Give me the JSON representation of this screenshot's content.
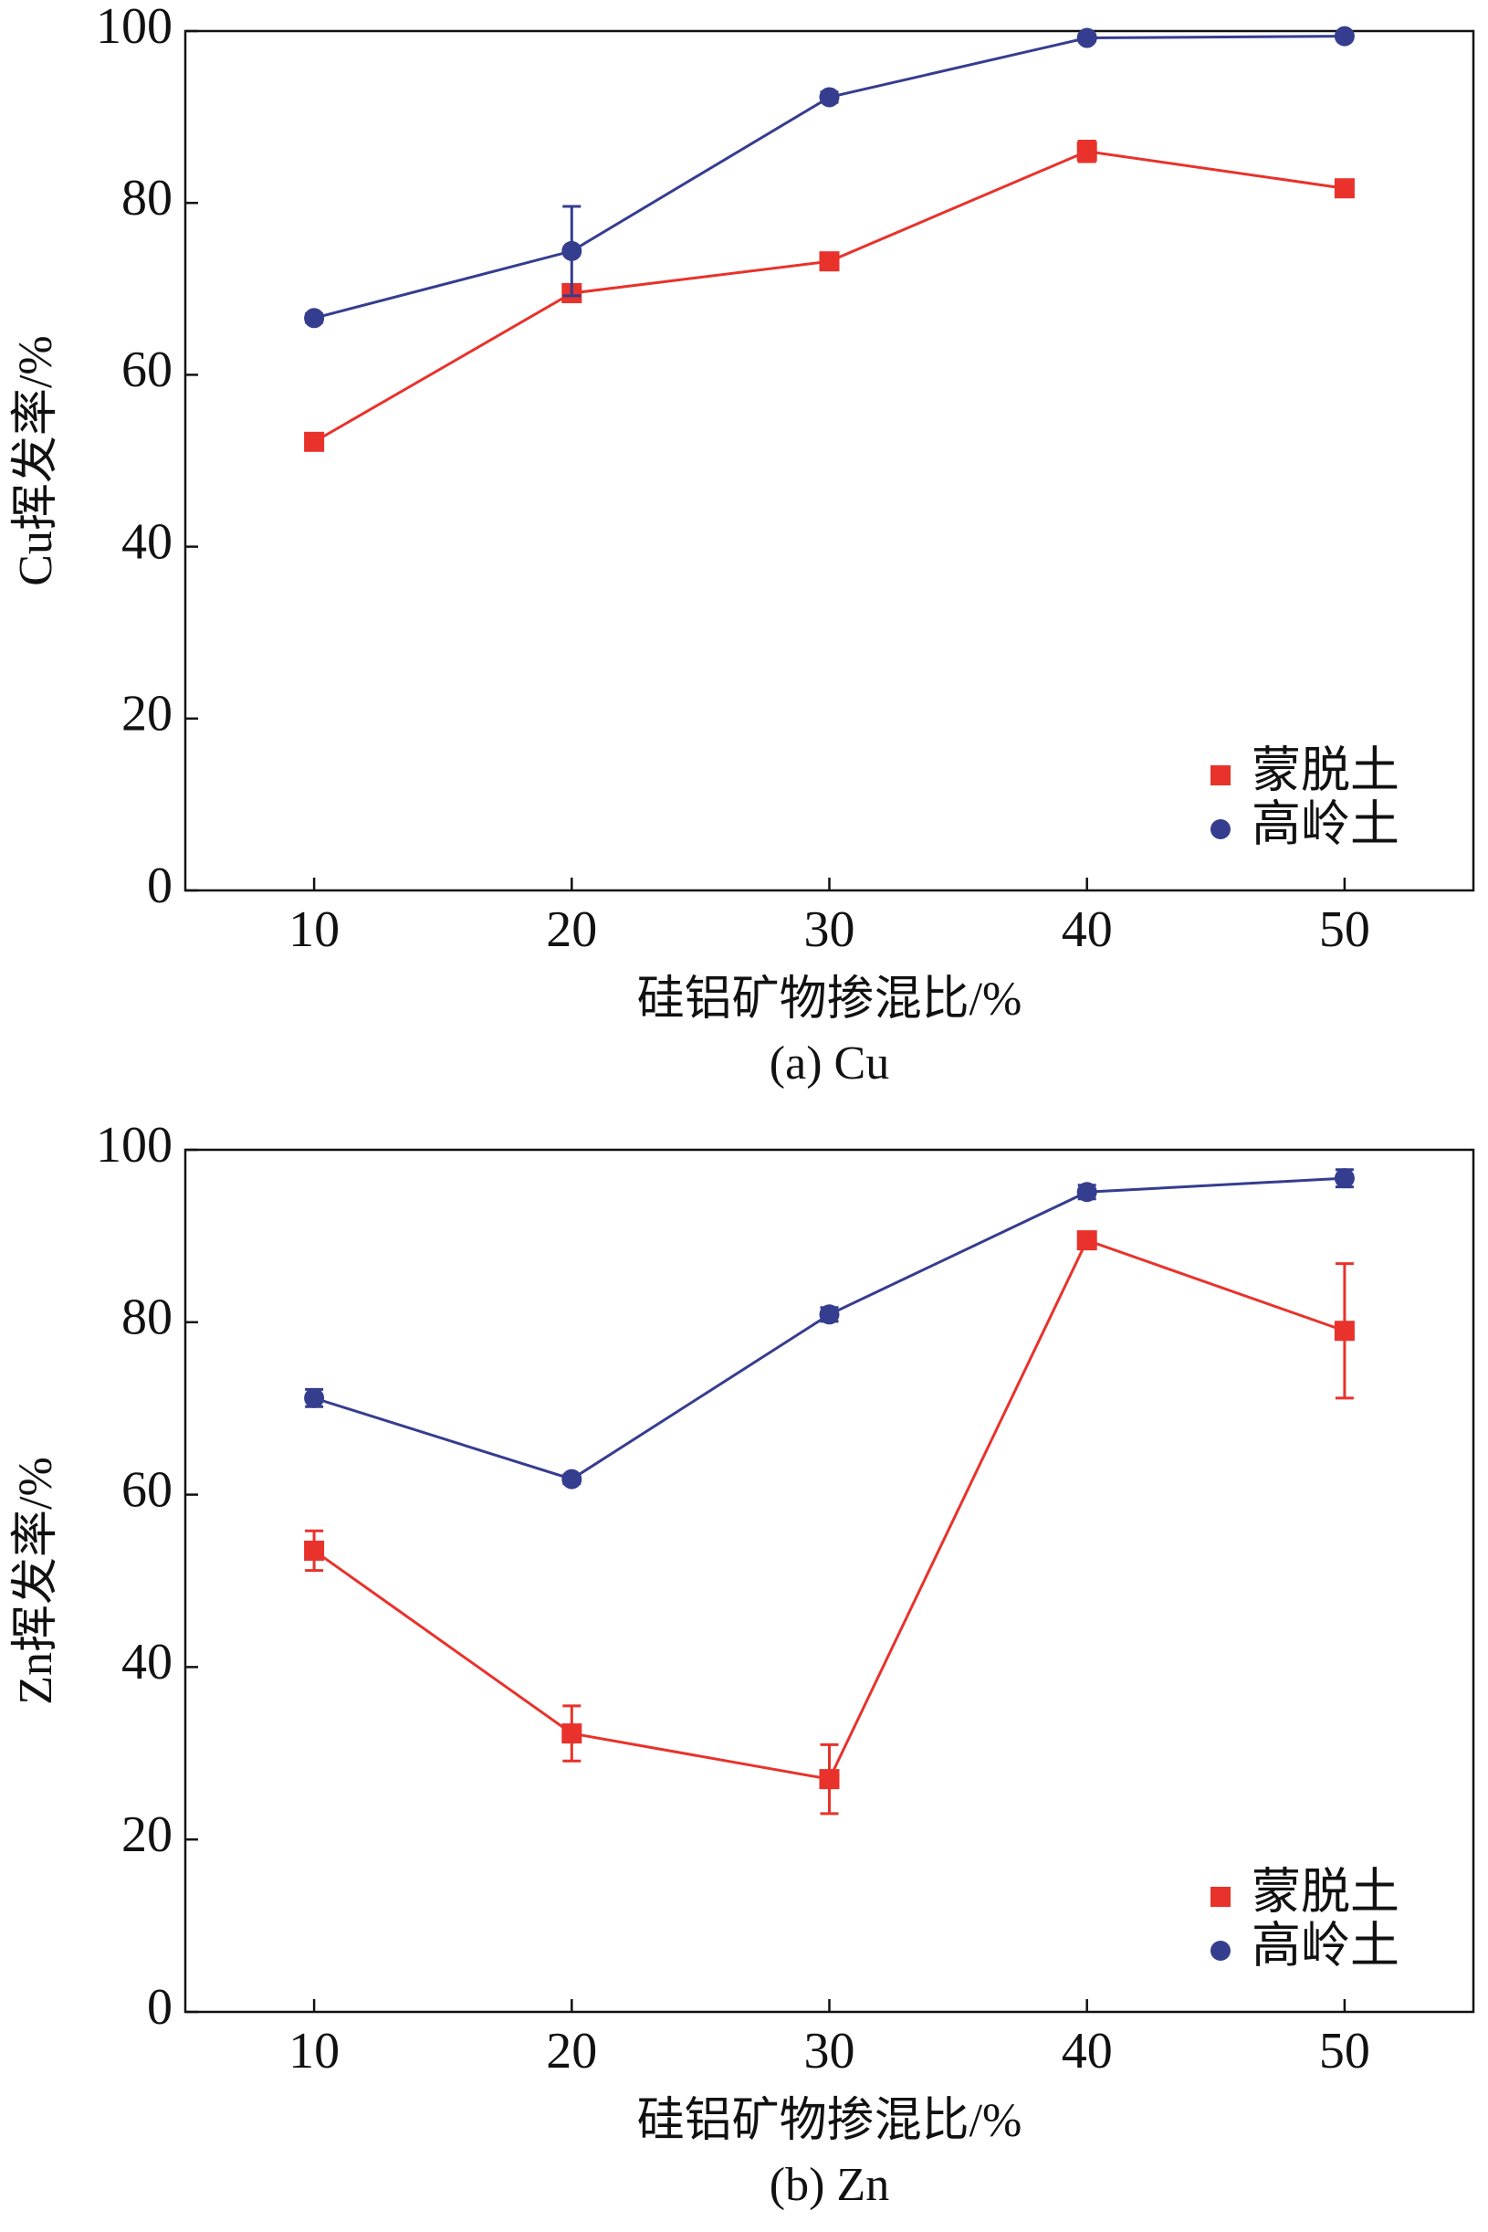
{
  "chart_data": [
    {
      "type": "line",
      "title": "(a) Cu",
      "xlabel": "硅铝矿物掺混比/%",
      "ylabel": "Cu挥发率/%",
      "x": [
        10,
        20,
        30,
        40,
        50
      ],
      "xlim": [
        5,
        55
      ],
      "xticks": [
        10,
        20,
        30,
        40,
        50
      ],
      "ylim": [
        0,
        100
      ],
      "yticks": [
        0,
        20,
        40,
        60,
        80,
        100
      ],
      "legend": "lower right",
      "series": [
        {
          "name": "蒙脱土",
          "color": "#e8322b",
          "marker": "square",
          "values": [
            52.2,
            69.5,
            73.2,
            86.0,
            81.7
          ],
          "errors": [
            0.8,
            0.8,
            0.7,
            1.2,
            0.8
          ]
        },
        {
          "name": "高岭土",
          "color": "#353d8f",
          "marker": "circle",
          "values": [
            66.6,
            74.4,
            92.3,
            99.2,
            99.4
          ],
          "errors": [
            0.5,
            5.2,
            0.6,
            0.4,
            0.3
          ]
        }
      ]
    },
    {
      "type": "line",
      "title": "(b) Zn",
      "xlabel": "硅铝矿物掺混比/%",
      "ylabel": "Zn挥发率/%",
      "x": [
        10,
        20,
        30,
        40,
        50
      ],
      "xlim": [
        5,
        55
      ],
      "xticks": [
        10,
        20,
        30,
        40,
        50
      ],
      "ylim": [
        0,
        100
      ],
      "yticks": [
        0,
        20,
        40,
        60,
        80,
        100
      ],
      "legend": "lower right",
      "series": [
        {
          "name": "蒙脱土",
          "color": "#e8322b",
          "marker": "square",
          "values": [
            53.5,
            32.3,
            27.0,
            89.5,
            79.0
          ],
          "errors": [
            2.3,
            3.2,
            4.0,
            0.8,
            7.8
          ]
        },
        {
          "name": "高岭土",
          "color": "#353d8f",
          "marker": "circle",
          "values": [
            71.2,
            61.8,
            80.9,
            95.1,
            96.7
          ],
          "errors": [
            1.0,
            0.5,
            0.8,
            0.8,
            1.0
          ]
        }
      ]
    }
  ]
}
